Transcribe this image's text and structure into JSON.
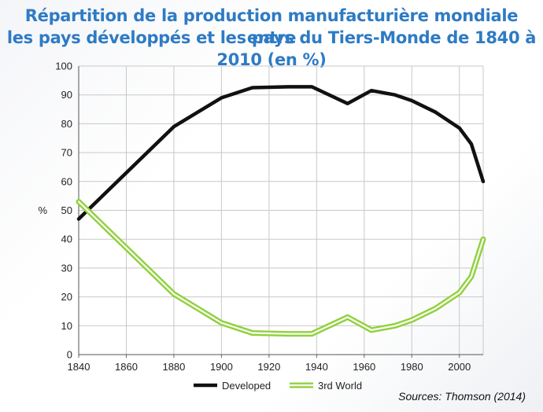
{
  "title_line1": "Répartition de la production manufacturière mondiale entre",
  "title_line2": "les pays développés et les pays du Tiers-Monde de 1840 à 2010 (en %)",
  "source": "Sources: Thomson (2014)",
  "colors": {
    "developed": "#111111",
    "third_world": "#8fcf3c",
    "grid": "#c8c8c8"
  },
  "chart_data": {
    "type": "line",
    "title": "Répartition de la production manufacturière mondiale entre les pays développés et les pays du Tiers-Monde de 1840 à 2010 (en %)",
    "xlabel": "",
    "ylabel": "%",
    "xlim": [
      1840,
      2010
    ],
    "ylim": [
      0,
      100
    ],
    "xticks": [
      1840,
      1860,
      1880,
      1900,
      1920,
      1940,
      1960,
      1980,
      2000
    ],
    "yticks": [
      0,
      10,
      20,
      30,
      40,
      50,
      60,
      70,
      80,
      90,
      100
    ],
    "grid": true,
    "legend": "bottom",
    "series": [
      {
        "name": "Developed",
        "x": [
          1840,
          1860,
          1880,
          1900,
          1913,
          1928,
          1938,
          1953,
          1963,
          1973,
          1980,
          1990,
          2000,
          2005,
          2010
        ],
        "values": [
          47,
          63,
          79,
          89,
          92.5,
          92.8,
          92.8,
          87,
          91.5,
          90,
          88,
          84,
          78.5,
          73,
          60
        ]
      },
      {
        "name": "3rd World",
        "x": [
          1840,
          1860,
          1880,
          1900,
          1913,
          1928,
          1938,
          1953,
          1963,
          1973,
          1980,
          1990,
          2000,
          2005,
          2010
        ],
        "values": [
          53,
          37,
          21,
          11,
          7.5,
          7.2,
          7.2,
          13,
          8.5,
          10,
          12,
          16,
          21.5,
          27,
          40
        ]
      }
    ]
  }
}
